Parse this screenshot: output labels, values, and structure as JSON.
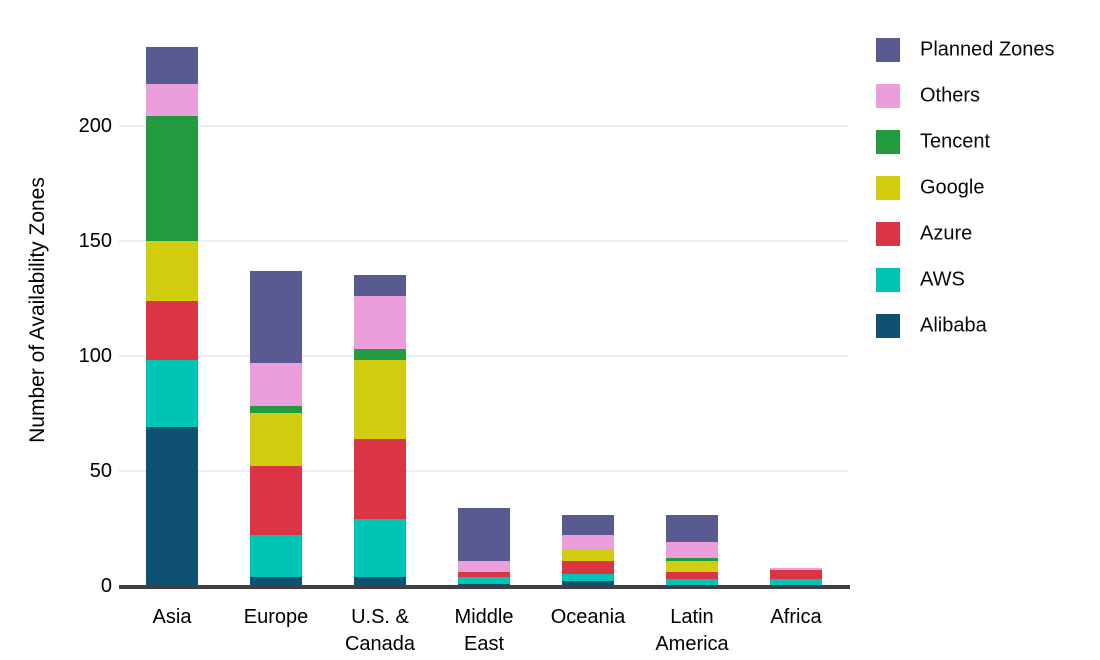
{
  "chart_data": {
    "type": "bar",
    "stacked": true,
    "title": "",
    "xlabel": "",
    "ylabel": "Number of Availability Zones",
    "ylim": [
      0,
      235
    ],
    "yticks": [
      0,
      50,
      100,
      150,
      200
    ],
    "grid": "horizontal",
    "legend_position": "top-right",
    "legend_order_top_to_bottom": [
      "Planned Zones",
      "Others",
      "Tencent",
      "Google",
      "Azure",
      "AWS",
      "Alibaba"
    ],
    "categories": [
      "Asia",
      "Europe",
      "U.S. &\nCanada",
      "Middle\nEast",
      "Oceania",
      "Latin\nAmerica",
      "Africa"
    ],
    "series": [
      {
        "name": "Alibaba",
        "color": "#0e5172",
        "values": [
          69,
          4,
          4,
          1,
          2,
          0,
          0
        ]
      },
      {
        "name": "AWS",
        "color": "#00c4b4",
        "values": [
          29,
          18,
          25,
          3,
          3,
          3,
          3
        ]
      },
      {
        "name": "Azure",
        "color": "#db3444",
        "values": [
          26,
          30,
          35,
          2,
          6,
          3,
          4
        ]
      },
      {
        "name": "Google",
        "color": "#d3cd0f",
        "values": [
          26,
          23,
          34,
          0,
          5,
          5,
          0
        ]
      },
      {
        "name": "Tencent",
        "color": "#219b3d",
        "values": [
          54,
          3,
          5,
          0,
          0,
          1,
          0
        ]
      },
      {
        "name": "Others",
        "color": "#eb9fda",
        "values": [
          14,
          19,
          23,
          5,
          6,
          7,
          1
        ]
      },
      {
        "name": "Planned Zones",
        "color": "#5a5a92",
        "values": [
          16,
          40,
          9,
          23,
          9,
          12,
          0
        ]
      }
    ]
  },
  "style_colors": {
    "background": "#ffffff",
    "gridline": "#ececec",
    "axis_line": "#3f3f3f",
    "text": "#000000"
  }
}
